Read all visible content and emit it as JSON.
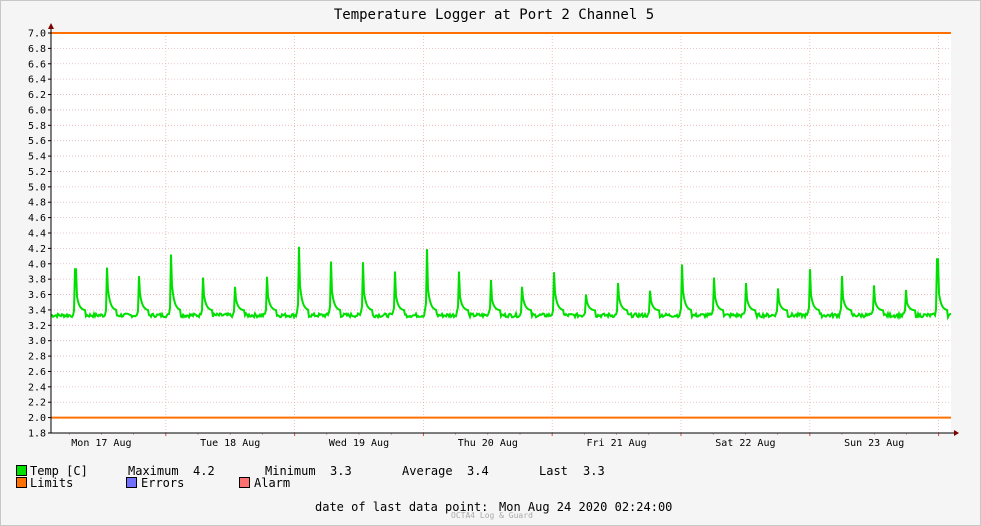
{
  "chart_data": {
    "type": "line",
    "title": "Temperature Logger at Port 2 Channel 5",
    "y_ticks": [
      "7.0",
      "6.8",
      "6.6",
      "6.4",
      "6.2",
      "6.0",
      "5.8",
      "5.6",
      "5.4",
      "5.2",
      "5.0",
      "4.8",
      "4.6",
      "4.4",
      "4.2",
      "4.0",
      "3.8",
      "3.6",
      "3.4",
      "3.2",
      "3.0",
      "2.8",
      "2.6",
      "2.4",
      "2.2",
      "2.0",
      "1.8"
    ],
    "ylim": [
      1.8,
      7.0
    ],
    "x_ticks": [
      "Mon 17 Aug",
      "Tue 18 Aug",
      "Wed 19 Aug",
      "Thu 20 Aug",
      "Fri 21 Aug",
      "Sat 22 Aug",
      "Sun 23 Aug"
    ],
    "limits": [
      7.0,
      2.0
    ],
    "series": [
      {
        "name": "Temp [C]",
        "color": "#00e000",
        "baseline": 3.33,
        "spikes": [
          3.93,
          3.95,
          3.84,
          4.12,
          3.82,
          3.7,
          3.83,
          4.22,
          4.03,
          4.02,
          3.9,
          4.19,
          3.9,
          3.79,
          3.7,
          3.89,
          3.6,
          3.75,
          3.65,
          3.99,
          3.82,
          3.75,
          3.68,
          3.93,
          3.84,
          3.72,
          3.66,
          4.06
        ]
      }
    ],
    "colors": {
      "limits": "#ff7000",
      "errors": "#7070ff",
      "alarm": "#ff7070",
      "temp": "#00e000"
    }
  },
  "legend": {
    "temp": "Temp [C]",
    "maximum_label": "Maximum",
    "maximum_value": "4.2",
    "minimum_label": "Minimum",
    "minimum_value": "3.3",
    "average_label": "Average",
    "average_value": "3.4",
    "last_label": "Last",
    "last_value": "3.3",
    "limits": "Limits",
    "errors": "Errors",
    "alarm": "Alarm"
  },
  "footer": {
    "date_label": "date of last data point:",
    "date_value": "Mon Aug 24 2020 02:24:00",
    "brand": "OCTA4 Log & Guard"
  }
}
